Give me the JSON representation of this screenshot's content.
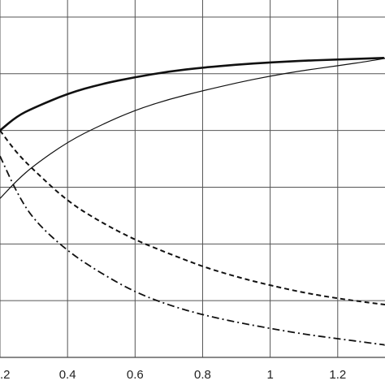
{
  "chart_data": {
    "type": "line",
    "title": "",
    "xlabel": "",
    "ylabel": "",
    "xlim": [
      0.2,
      1.34
    ],
    "ylim": [
      0,
      6.3
    ],
    "grid": true,
    "legend": "none",
    "x_ticks": [
      0.2,
      0.4,
      0.6,
      0.8,
      1,
      1.2
    ],
    "x_tick_labels": [
      ".2",
      "0.4",
      "0.6",
      "0.8",
      "1",
      "1.2"
    ],
    "y_ticks": [
      1,
      2,
      3,
      4,
      5,
      6
    ],
    "series": [
      {
        "style": "solid-thick",
        "x": [
          0.2,
          0.25,
          0.3,
          0.4,
          0.5,
          0.6,
          0.7,
          0.8,
          0.9,
          1.0,
          1.1,
          1.2,
          1.3,
          1.34
        ],
        "y": [
          4.0,
          4.25,
          4.4,
          4.65,
          4.82,
          4.94,
          5.04,
          5.11,
          5.16,
          5.2,
          5.23,
          5.25,
          5.27,
          5.28
        ]
      },
      {
        "style": "solid-thin",
        "x": [
          0.2,
          0.25,
          0.3,
          0.4,
          0.5,
          0.6,
          0.7,
          0.8,
          0.9,
          1.0,
          1.1,
          1.2,
          1.3,
          1.34
        ],
        "y": [
          2.8,
          3.12,
          3.38,
          3.8,
          4.1,
          4.36,
          4.55,
          4.7,
          4.84,
          4.96,
          5.06,
          5.14,
          5.23,
          5.27
        ]
      },
      {
        "style": "dashed",
        "x": [
          0.2,
          0.25,
          0.3,
          0.4,
          0.5,
          0.6,
          0.7,
          0.8,
          0.9,
          1.0,
          1.1,
          1.2,
          1.3,
          1.34
        ],
        "y": [
          4.0,
          3.6,
          3.3,
          2.75,
          2.38,
          2.07,
          1.83,
          1.6,
          1.42,
          1.27,
          1.14,
          1.04,
          0.96,
          0.93
        ]
      },
      {
        "style": "dash-dot",
        "x": [
          0.2,
          0.25,
          0.3,
          0.4,
          0.5,
          0.6,
          0.7,
          0.8,
          0.9,
          1.0,
          1.1,
          1.2,
          1.3,
          1.34
        ],
        "y": [
          3.55,
          2.9,
          2.42,
          1.87,
          1.48,
          1.15,
          0.92,
          0.75,
          0.62,
          0.51,
          0.41,
          0.33,
          0.25,
          0.22
        ]
      }
    ]
  }
}
